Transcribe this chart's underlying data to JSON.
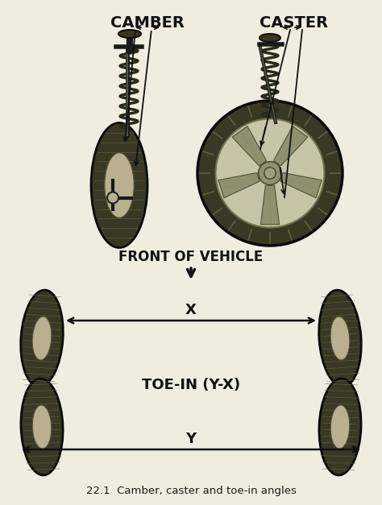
{
  "bg_color": "#f0ede0",
  "title": "22.1  Camber, caster and toe-in angles",
  "title_fontsize": 9.5,
  "title_color": "#1a1a1a",
  "label_camber": "CAMBER",
  "label_caster": "CASTER",
  "label_front": "FRONT OF VEHICLE",
  "label_toe_in": "TOE-IN (Y-X)",
  "label_x": "X",
  "label_y": "Y",
  "label_fontsize": 13,
  "arrow_color": "#111111",
  "line_color": "#111111",
  "tire_dark": "#3a3825",
  "tire_mid": "#6a6848",
  "tire_light": "#b8b090",
  "rim_color": "#c8c4a8",
  "rim_dark": "#909070",
  "spring_color": "#2a2a1a",
  "strut_color": "#1a1a1a"
}
